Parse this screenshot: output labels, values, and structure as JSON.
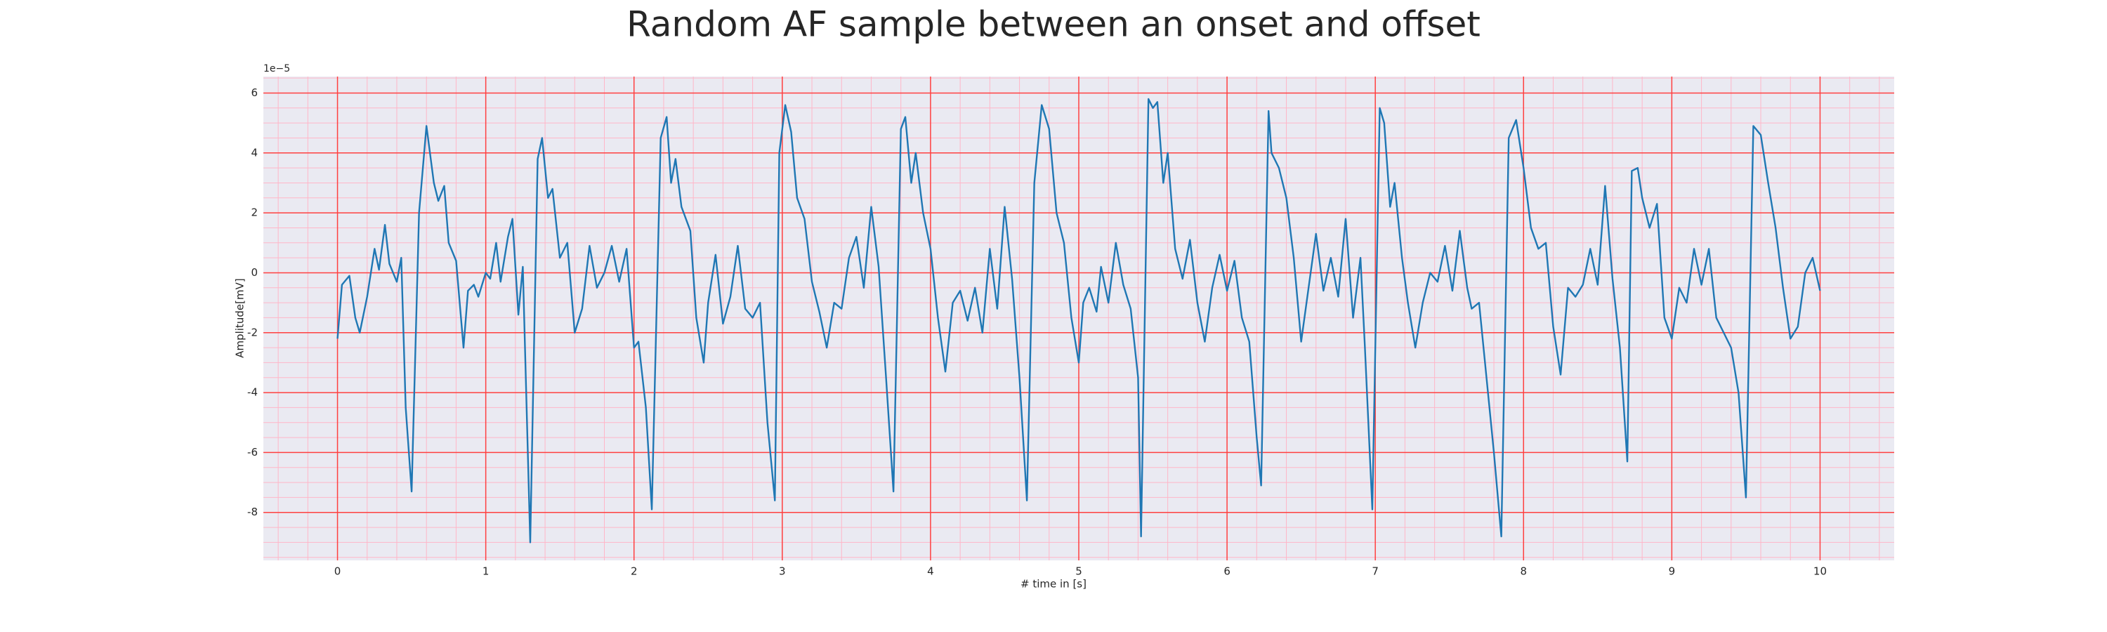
{
  "chart_data": {
    "type": "line",
    "title": "Random AF sample between an onset and offset",
    "xlabel": "# time in [s]",
    "ylabel": "Amplitude[mV]",
    "y_offset_label": "1e−5",
    "background": "#eaeaf2",
    "grid": true,
    "grid_color": "#ff4040",
    "minor_grid_color": "#ffb6c8",
    "xlim": [
      -0.5,
      10.5
    ],
    "ylim": [
      -9.6,
      6.55
    ],
    "xticks": [
      0,
      1,
      2,
      3,
      4,
      5,
      6,
      7,
      8,
      9,
      10
    ],
    "yticks": [
      -8,
      -6,
      -4,
      -2,
      0,
      2,
      4,
      6
    ],
    "xminorticks": [
      -0.4,
      -0.2,
      0.2,
      0.4,
      0.6,
      0.8,
      1.2,
      1.4,
      1.6,
      1.8,
      2.2,
      2.4,
      2.6,
      2.8,
      3.2,
      3.4,
      3.6,
      3.8,
      4.2,
      4.4,
      4.6,
      4.8,
      5.2,
      5.4,
      5.6,
      5.8,
      6.2,
      6.4,
      6.6,
      6.8,
      7.2,
      7.4,
      7.6,
      7.8,
      8.2,
      8.4,
      8.6,
      8.8,
      9.2,
      9.4,
      9.6,
      9.8,
      10.2,
      10.4
    ],
    "yminorticks": [
      -9.5,
      -9,
      -8.5,
      -7.5,
      -7,
      -6.5,
      -5.5,
      -5,
      -4.5,
      -3.5,
      -3,
      -2.5,
      -1.5,
      -1,
      -0.5,
      0.5,
      1,
      1.5,
      2.5,
      3,
      3.5,
      4.5,
      5,
      5.5,
      6.5
    ],
    "x": [
      0,
      0.03,
      0.08,
      0.12,
      0.15,
      0.2,
      0.25,
      0.28,
      0.32,
      0.35,
      0.4,
      0.43,
      0.46,
      0.5,
      0.55,
      0.6,
      0.65,
      0.68,
      0.72,
      0.75,
      0.8,
      0.85,
      0.88,
      0.92,
      0.95,
      1.0,
      1.03,
      1.07,
      1.1,
      1.15,
      1.18,
      1.22,
      1.25,
      1.3,
      1.35,
      1.38,
      1.42,
      1.45,
      1.5,
      1.55,
      1.6,
      1.65,
      1.7,
      1.75,
      1.8,
      1.85,
      1.9,
      1.95,
      2.0,
      2.03,
      2.08,
      2.12,
      2.18,
      2.22,
      2.25,
      2.28,
      2.32,
      2.38,
      2.42,
      2.47,
      2.5,
      2.55,
      2.6,
      2.65,
      2.7,
      2.75,
      2.8,
      2.85,
      2.9,
      2.95,
      2.98,
      3.02,
      3.06,
      3.1,
      3.15,
      3.2,
      3.25,
      3.3,
      3.35,
      3.4,
      3.45,
      3.5,
      3.55,
      3.6,
      3.65,
      3.7,
      3.75,
      3.8,
      3.83,
      3.87,
      3.9,
      3.95,
      4.0,
      4.05,
      4.1,
      4.15,
      4.2,
      4.25,
      4.3,
      4.35,
      4.4,
      4.45,
      4.5,
      4.55,
      4.6,
      4.65,
      4.7,
      4.75,
      4.8,
      4.85,
      4.9,
      4.95,
      5.0,
      5.03,
      5.07,
      5.12,
      5.15,
      5.2,
      5.25,
      5.3,
      5.35,
      5.4,
      5.42,
      5.47,
      5.5,
      5.53,
      5.57,
      5.6,
      5.65,
      5.7,
      5.75,
      5.8,
      5.85,
      5.9,
      5.95,
      6.0,
      6.05,
      6.1,
      6.15,
      6.2,
      6.23,
      6.28,
      6.3,
      6.35,
      6.4,
      6.45,
      6.5,
      6.55,
      6.6,
      6.65,
      6.7,
      6.75,
      6.8,
      6.85,
      6.9,
      6.93,
      6.98,
      7.03,
      7.06,
      7.1,
      7.13,
      7.18,
      7.22,
      7.27,
      7.32,
      7.37,
      7.42,
      7.47,
      7.52,
      7.57,
      7.62,
      7.65,
      7.7,
      7.75,
      7.8,
      7.85,
      7.9,
      7.95,
      8.0,
      8.05,
      8.1,
      8.15,
      8.2,
      8.25,
      8.3,
      8.35,
      8.4,
      8.45,
      8.5,
      8.55,
      8.6,
      8.65,
      8.7,
      8.73,
      8.77,
      8.8,
      8.85,
      8.9,
      8.95,
      9.0,
      9.05,
      9.1,
      9.15,
      9.2,
      9.25,
      9.3,
      9.35,
      9.4,
      9.45,
      9.5,
      9.55,
      9.6,
      9.65,
      9.7,
      9.75,
      9.8,
      9.85,
      9.9,
      9.95,
      10.0
    ],
    "series": [
      {
        "color": "#1f77b4",
        "values": [
          -2.2,
          -0.4,
          -0.1,
          -1.5,
          -2.0,
          -0.8,
          0.8,
          0.1,
          1.6,
          0.3,
          -0.3,
          0.5,
          -4.5,
          -7.3,
          2.0,
          4.9,
          3.0,
          2.4,
          2.9,
          1.0,
          0.4,
          -2.5,
          -0.6,
          -0.4,
          -0.8,
          0.0,
          -0.2,
          1.0,
          -0.3,
          1.2,
          1.8,
          -1.4,
          0.2,
          -9.0,
          3.8,
          4.5,
          2.5,
          2.8,
          0.5,
          1.0,
          -2.0,
          -1.2,
          0.9,
          -0.5,
          0.0,
          0.9,
          -0.3,
          0.8,
          -2.5,
          -2.3,
          -4.5,
          -7.9,
          4.5,
          5.2,
          3.0,
          3.8,
          2.2,
          1.4,
          -1.5,
          -3.0,
          -1.0,
          0.6,
          -1.7,
          -0.8,
          0.9,
          -1.2,
          -1.5,
          -1.0,
          -5.0,
          -7.6,
          4.0,
          5.6,
          4.7,
          2.5,
          1.8,
          -0.3,
          -1.3,
          -2.5,
          -1.0,
          -1.2,
          0.5,
          1.2,
          -0.5,
          2.2,
          0.2,
          -3.5,
          -7.3,
          4.8,
          5.2,
          3.0,
          4.0,
          2.0,
          0.8,
          -1.5,
          -3.3,
          -1.0,
          -0.6,
          -1.6,
          -0.5,
          -2.0,
          0.8,
          -1.2,
          2.2,
          -0.2,
          -3.5,
          -7.6,
          3.0,
          5.6,
          4.8,
          2.0,
          1.0,
          -1.5,
          -3.0,
          -1.0,
          -0.5,
          -1.3,
          0.2,
          -1.0,
          1.0,
          -0.4,
          -1.2,
          -3.5,
          -8.8,
          5.8,
          5.5,
          5.7,
          3.0,
          4.0,
          0.8,
          -0.2,
          1.1,
          -1.0,
          -2.3,
          -0.5,
          0.6,
          -0.6,
          0.4,
          -1.5,
          -2.3,
          -5.5,
          -7.1,
          5.4,
          4.0,
          3.5,
          2.5,
          0.5,
          -2.3,
          -0.5,
          1.3,
          -0.6,
          0.5,
          -0.8,
          1.8,
          -1.5,
          0.5,
          -2.5,
          -7.9,
          5.5,
          5.0,
          2.2,
          3.0,
          0.5,
          -1.0,
          -2.5,
          -1.0,
          0.0,
          -0.3,
          0.9,
          -0.6,
          1.4,
          -0.5,
          -1.2,
          -1.0,
          -3.5,
          -6.0,
          -8.8,
          4.5,
          5.1,
          3.5,
          1.5,
          0.8,
          1.0,
          -1.8,
          -3.4,
          -0.5,
          -0.8,
          -0.4,
          0.8,
          -0.4,
          2.9,
          -0.2,
          -2.5,
          -6.3,
          3.4,
          3.5,
          2.5,
          1.5,
          2.3,
          -1.5,
          -2.2,
          -0.5,
          -1.0,
          0.8,
          -0.4,
          0.8,
          -1.5,
          -2.0,
          -2.5,
          -4.0,
          -7.5,
          4.9,
          4.6,
          3.0,
          1.5,
          -0.5,
          -2.2,
          -1.8,
          0.0,
          0.5,
          -0.6
        ]
      }
    ]
  }
}
